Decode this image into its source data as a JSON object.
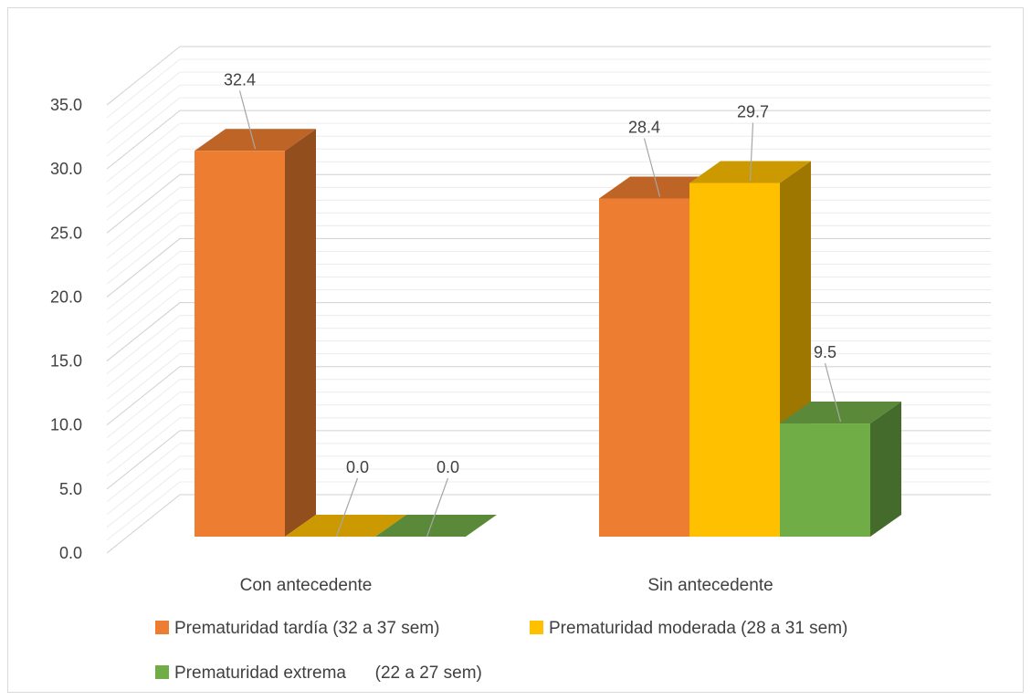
{
  "chart_data": {
    "type": "bar",
    "categories": [
      "Con antecedente",
      "Sin antecedente"
    ],
    "series": [
      {
        "name": "Prematuridad tardía (32 a 37 sem)",
        "values": [
          32.4,
          28.4
        ],
        "labels": [
          "32.4",
          "28.4"
        ],
        "color": "#ED7D31"
      },
      {
        "name": "Prematuridad moderada (28 a 31 sem)",
        "values": [
          0.0,
          29.7
        ],
        "labels": [
          "0.0",
          "29.7"
        ],
        "color": "#FFC000"
      },
      {
        "name": "Prematuridad extrema      (22 a 27 sem)",
        "values": [
          0.0,
          9.5
        ],
        "labels": [
          "0.0",
          "9.5"
        ],
        "color": "#70AD47"
      }
    ],
    "y_ticks": [
      "0.0",
      "5.0",
      "10.0",
      "15.0",
      "20.0",
      "25.0",
      "30.0",
      "35.0"
    ],
    "ylim": [
      0,
      35
    ],
    "grid": true,
    "style": "3d-column",
    "legend_position": "bottom"
  }
}
